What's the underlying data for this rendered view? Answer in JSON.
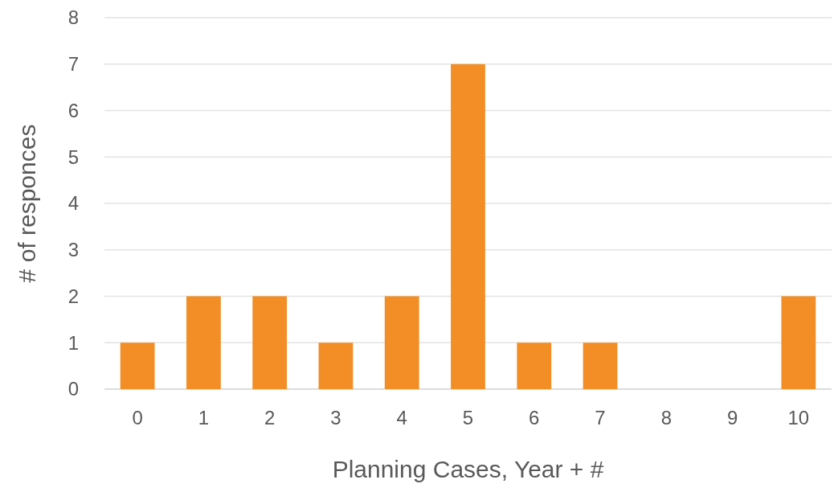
{
  "chart_data": {
    "type": "bar",
    "xlabel": "Planning Cases, Year + #",
    "ylabel": "# of responces",
    "categories": [
      "0",
      "1",
      "2",
      "3",
      "4",
      "5",
      "6",
      "7",
      "8",
      "9",
      "10"
    ],
    "values": [
      1,
      2,
      2,
      1,
      2,
      7,
      1,
      1,
      0,
      0,
      2
    ],
    "color": "#f28e25",
    "ylim": [
      0,
      8
    ],
    "yticks": [
      0,
      1,
      2,
      3,
      4,
      5,
      6,
      7,
      8
    ],
    "grid": "y"
  }
}
